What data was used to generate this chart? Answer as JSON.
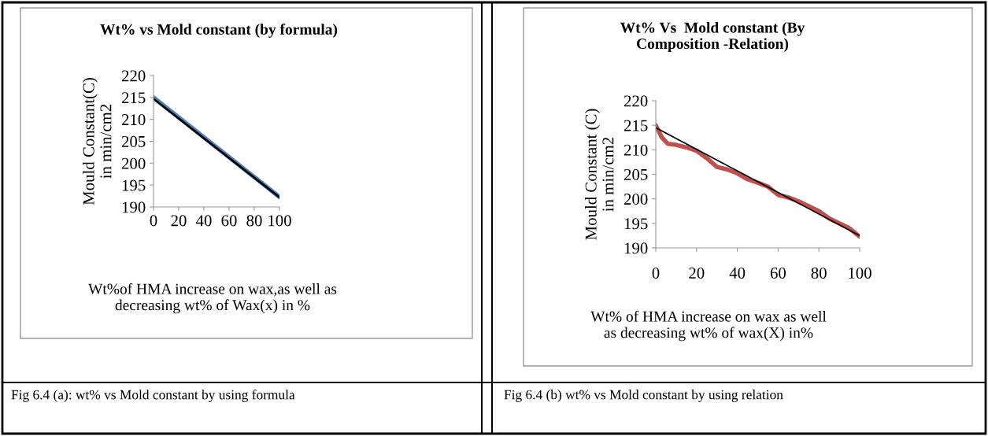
{
  "chart_data": [
    {
      "type": "line",
      "title": "Wt% vs Mold constant (by formula)",
      "xlabel": "Wt%of HMA increase on wax,as well as\ndecreasing wt% of Wax(x) in %",
      "ylabel": "Mould Constant(C)\nin min/cm2",
      "xlim": [
        0,
        100
      ],
      "ylim": [
        190,
        220
      ],
      "xticks": [
        0,
        20,
        40,
        60,
        80,
        100
      ],
      "yticks": [
        190,
        195,
        200,
        205,
        210,
        215,
        220
      ],
      "grid": false,
      "legend": false,
      "series": [
        {
          "color": "#4f81bd",
          "x": [
            0,
            100
          ],
          "values": [
            215,
            192.3
          ]
        },
        {
          "color": "#000000",
          "x": [
            0,
            100
          ],
          "values": [
            214.7,
            192.2
          ]
        }
      ],
      "annotations": [
        "Fig 6.4 (a): wt% vs Mold constant by using formula"
      ]
    },
    {
      "type": "line",
      "title": "Wt% Vs  Mold constant (By\nComposition -Relation)",
      "xlabel": "Wt% of HMA increase on wax as well\nas decreasing wt% of wax(X) in%",
      "ylabel": "Mould Constant (C)\nin min/cm2",
      "xlim": [
        0,
        100
      ],
      "ylim": [
        190,
        220
      ],
      "xticks": [
        0,
        20,
        40,
        60,
        80,
        100
      ],
      "yticks": [
        190,
        195,
        200,
        205,
        210,
        215,
        220
      ],
      "grid": false,
      "legend": false,
      "series": [
        {
          "color": "#c0504d",
          "x": [
            0,
            3,
            6,
            10,
            15,
            20,
            25,
            30,
            35,
            40,
            45,
            50,
            55,
            60,
            65,
            70,
            75,
            80,
            85,
            90,
            95,
            100
          ],
          "values": [
            215,
            212.5,
            211.2,
            211,
            210.5,
            209.8,
            208.3,
            206.5,
            206,
            205.2,
            204,
            203.3,
            202.5,
            200.8,
            200.3,
            199.5,
            198.5,
            197.5,
            196,
            195,
            194,
            192.3
          ]
        },
        {
          "color": "#000000",
          "x": [
            0,
            100
          ],
          "values": [
            214.5,
            192.5
          ]
        }
      ],
      "annotations": [
        "Fig 6.4 (b) wt% vs Mold constant by using relation"
      ]
    }
  ]
}
